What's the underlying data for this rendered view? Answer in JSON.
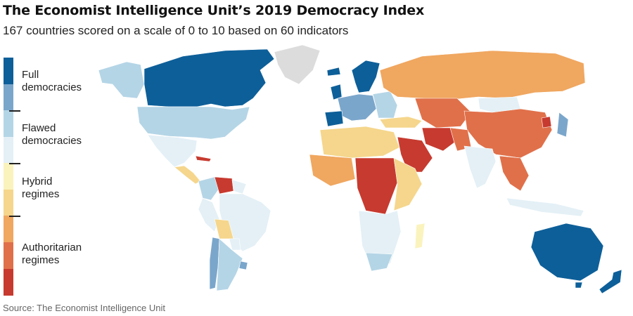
{
  "title": "The Economist Intelligence Unit’s 2019 Democracy Index",
  "subtitle": "167 countries scored on a scale of 0 to 10 based on 60 indicators",
  "source": "Source: The Economist Intelligence Unit",
  "legend": {
    "categories": [
      {
        "line1": "Full",
        "line2": "democracies"
      },
      {
        "line1": "Flawed",
        "line2": "democracies"
      },
      {
        "line1": "Hybrid",
        "line2": "regimes"
      },
      {
        "line1": "Authoritarian",
        "line2": "regimes"
      }
    ],
    "colors": [
      "#0d5f99",
      "#7ba6cb",
      "#b4d5e6",
      "#e4f0f6",
      "#faf3bd",
      "#f5d68c",
      "#f0a760",
      "#e0704a",
      "#c73a2f"
    ]
  },
  "colors": {
    "no_data": "#dcdcdc",
    "ocean": "#ffffff"
  }
}
